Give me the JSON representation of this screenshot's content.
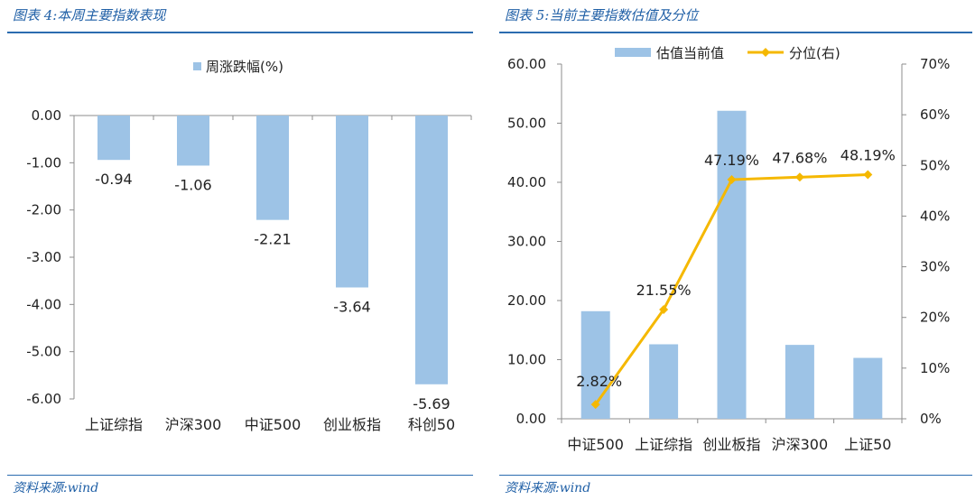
{
  "left": {
    "title": "图表 4:本周主要指数表现",
    "source": "资料来源:wind"
  },
  "right": {
    "title": "图表 5:当前主要指数估值及分位",
    "source": "资料来源:wind"
  },
  "chart_data": [
    {
      "type": "bar",
      "categories": [
        "上证综指",
        "沪深300",
        "中证500",
        "创业板指",
        "科创50"
      ],
      "series": [
        {
          "name": "周涨跌幅(%)",
          "values": [
            -0.94,
            -1.06,
            -2.21,
            -3.64,
            -5.69
          ],
          "color": "#9dc3e6"
        }
      ],
      "data_labels": [
        "-0.94",
        "-1.06",
        "-2.21",
        "-3.64",
        "-5.69"
      ],
      "ylim": [
        -6.0,
        0.0
      ],
      "yticks": [
        0,
        -1,
        -2,
        -3,
        -4,
        -5,
        -6
      ],
      "ytick_labels": [
        "0.00",
        "-1.00",
        "-2.00",
        "-3.00",
        "-4.00",
        "-5.00",
        "-6.00"
      ],
      "legend_position": "top-center",
      "grid": false
    },
    {
      "type": "bar",
      "categories": [
        "中证500",
        "上证综指",
        "创业板指",
        "沪深300",
        "上证50"
      ],
      "series": [
        {
          "name": "估值当前值",
          "type": "bar",
          "axis": "left",
          "values": [
            18.2,
            12.6,
            52.1,
            12.5,
            10.3
          ],
          "color": "#9dc3e6"
        },
        {
          "name": "分位(右)",
          "type": "line",
          "axis": "right",
          "values": [
            2.82,
            21.55,
            47.19,
            47.68,
            48.19
          ],
          "color": "#f5b800"
        }
      ],
      "line_labels": [
        "2.82%",
        "21.55%",
        "47.19%",
        "47.68%",
        "48.19%"
      ],
      "ylim": [
        0,
        60
      ],
      "yticks": [
        0,
        10,
        20,
        30,
        40,
        50,
        60
      ],
      "ytick_labels": [
        "0.00",
        "10.00",
        "20.00",
        "30.00",
        "40.00",
        "50.00",
        "60.00"
      ],
      "y2lim": [
        0,
        70
      ],
      "y2ticks": [
        0,
        10,
        20,
        30,
        40,
        50,
        60,
        70
      ],
      "y2tick_labels": [
        "0%",
        "10%",
        "20%",
        "30%",
        "40%",
        "50%",
        "60%",
        "70%"
      ],
      "legend_position": "top-center",
      "grid": false
    }
  ]
}
